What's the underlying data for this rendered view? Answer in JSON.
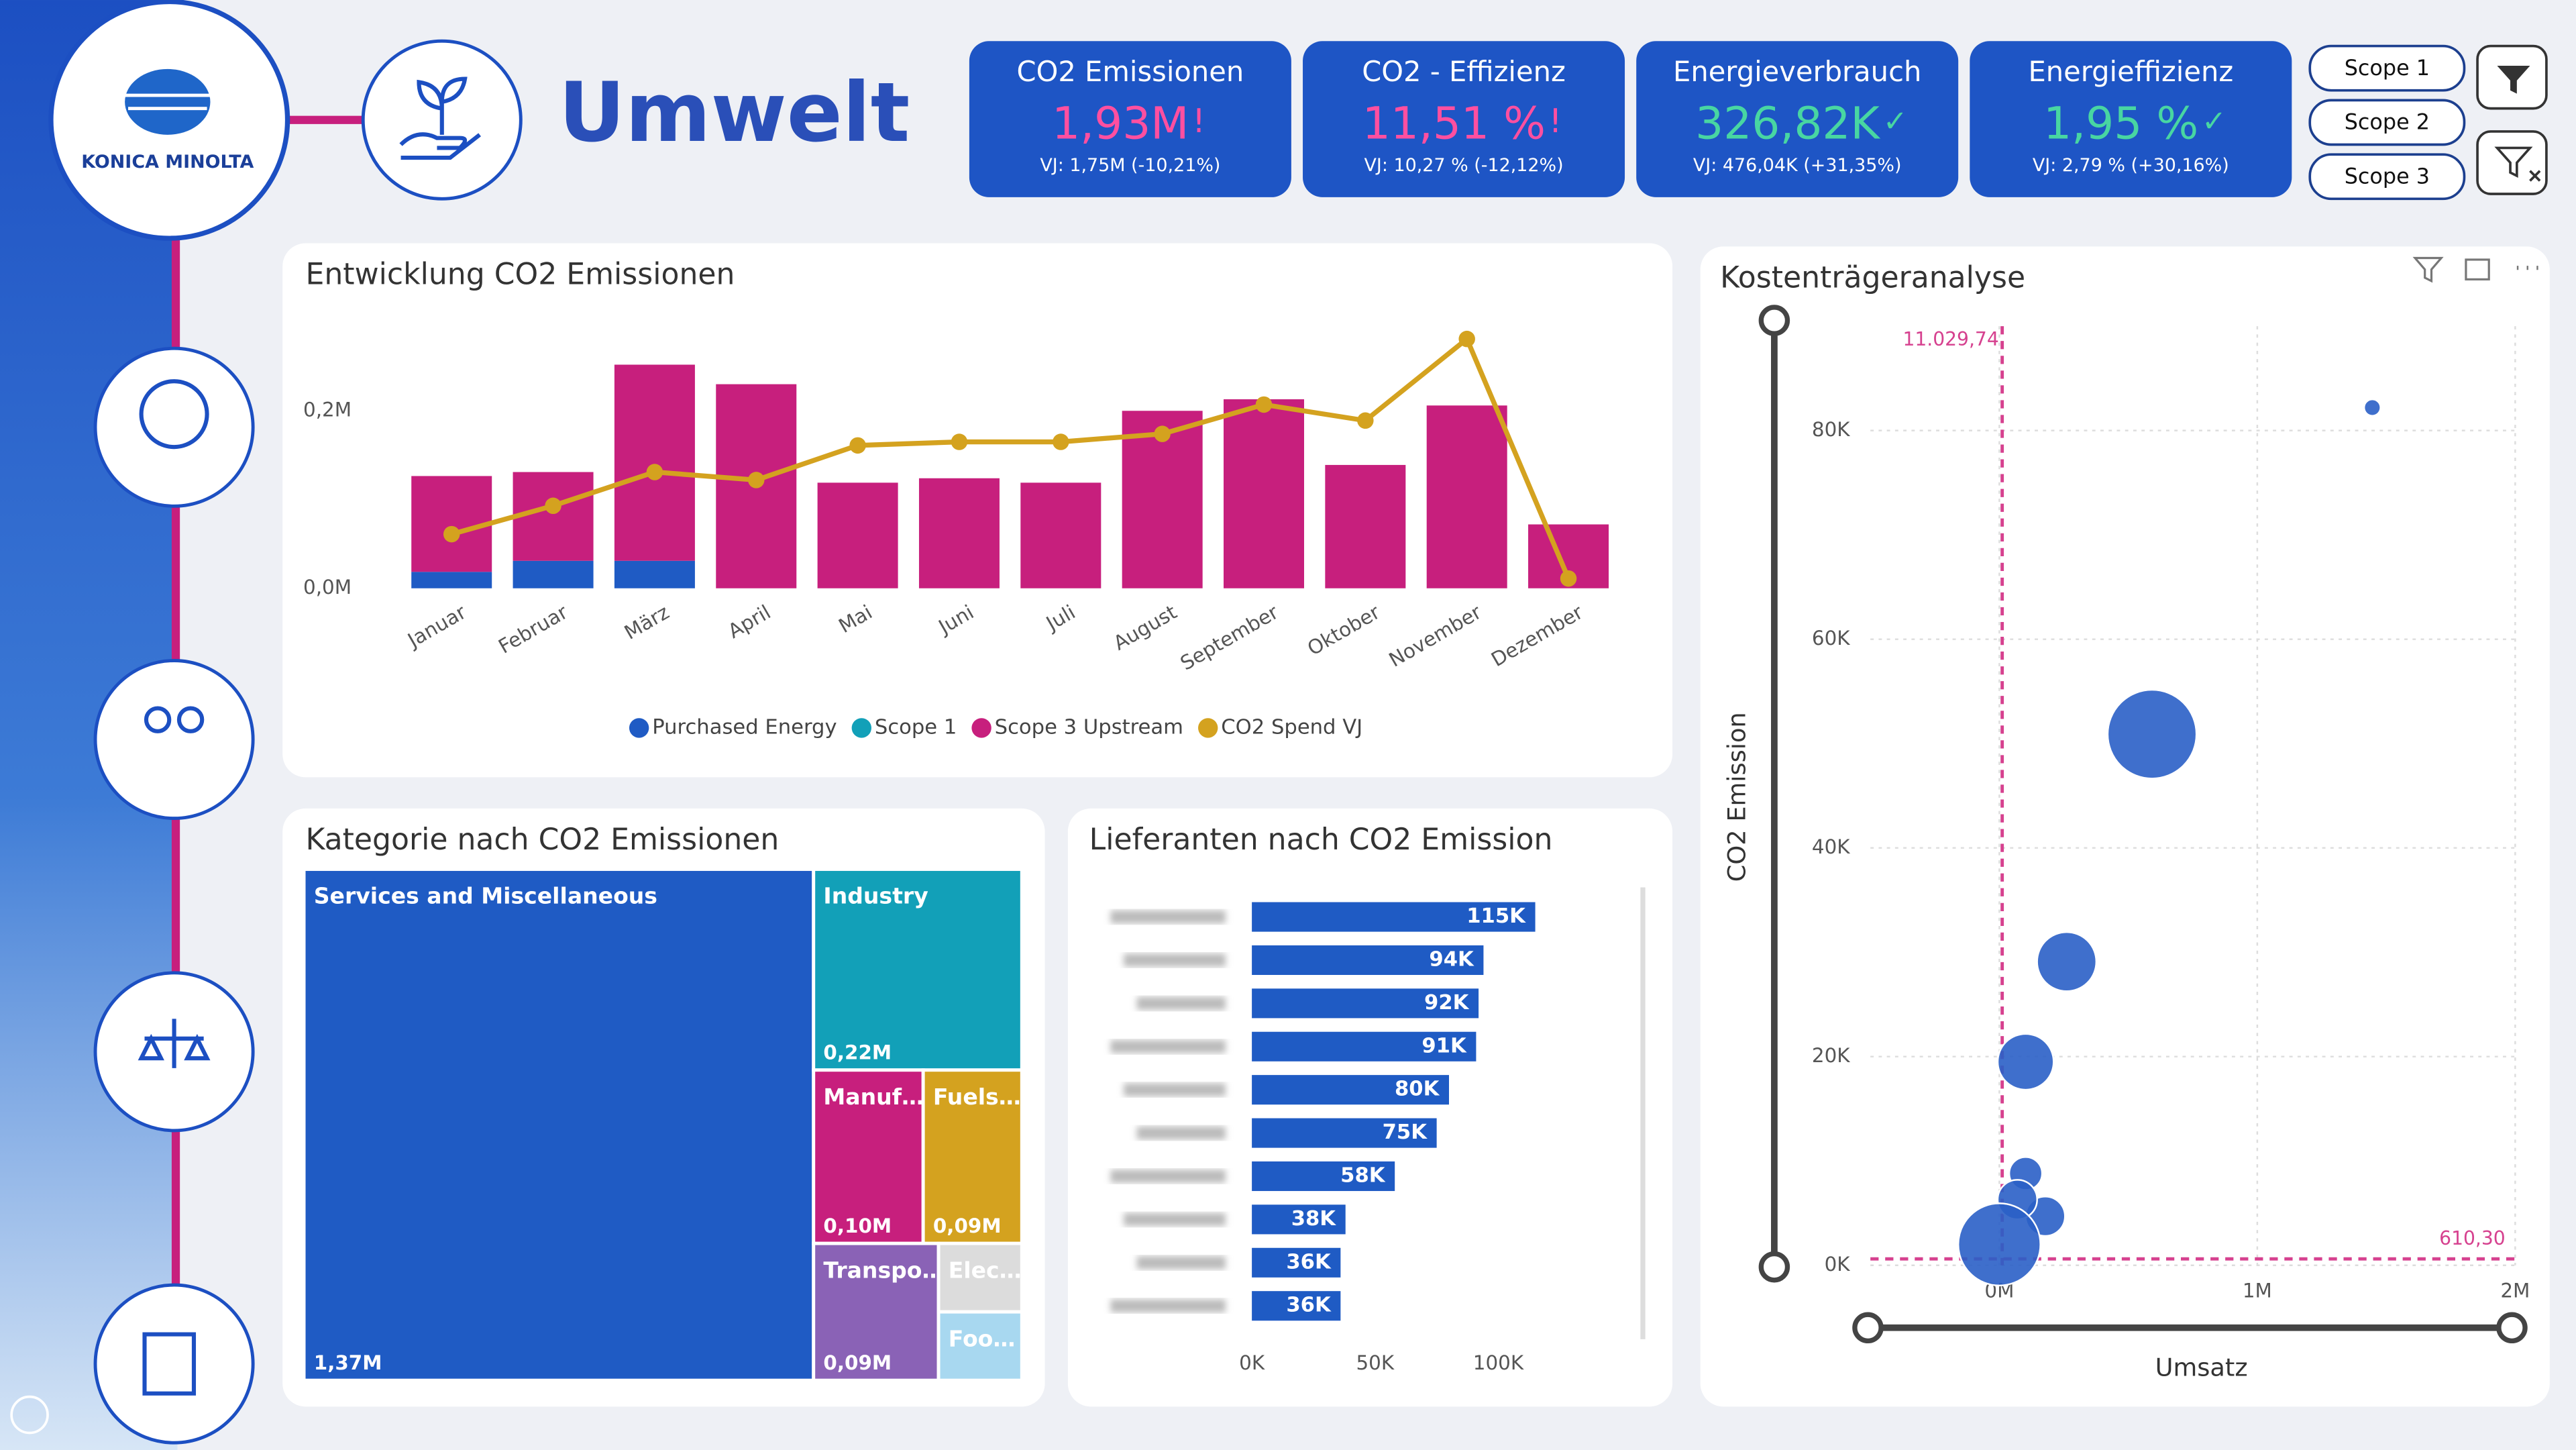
{
  "header": {
    "logo": "KONICA MINOLTA",
    "title": "Umwelt"
  },
  "kpis": [
    {
      "title": "CO2 Emissionen",
      "value": "1,93M",
      "flag": "!",
      "previous": "VJ: 1,75M (-10,21%)"
    },
    {
      "title": "CO2 - Effizienz",
      "value": "11,51 %",
      "flag": "!",
      "previous": "VJ: 10,27 % (-12,12%)"
    },
    {
      "title": "Energieverbrauch",
      "value": "326,82K",
      "flag": "✓",
      "previous": "VJ: 476,04K (+31,35%)"
    },
    {
      "title": "Energieffizienz",
      "value": "1,95 %",
      "flag": "✓",
      "previous": "VJ: 2,79 % (+30,16%)"
    }
  ],
  "filters": [
    "Scope 1",
    "Scope 2",
    "Scope 3"
  ],
  "chart_data": [
    {
      "type": "bar",
      "title": "Entwicklung CO2 Emissionen",
      "categories": [
        "Januar",
        "Februar",
        "März",
        "April",
        "Mai",
        "Juni",
        "Juli",
        "August",
        "September",
        "Oktober",
        "November",
        "Dezember"
      ],
      "series": [
        {
          "name": "Purchased Energy",
          "color": "#1f5bc4",
          "values": [
            0.0185,
            0.031,
            0.031,
            0,
            0,
            0,
            0,
            0,
            0,
            0,
            0,
            0
          ]
        },
        {
          "name": "Scope 1",
          "color": "#12a0b8",
          "values": [
            0,
            0,
            0,
            0,
            0,
            0,
            0,
            0,
            0,
            0,
            0,
            0
          ]
        },
        {
          "name": "Scope 3 Upstream",
          "color": "#c71f7d",
          "values": [
            0.108,
            0.1,
            0.221,
            0.23,
            0.119,
            0.124,
            0.119,
            0.2,
            0.213,
            0.139,
            0.206,
            0.072
          ]
        },
        {
          "name": "CO2 Spend VJ",
          "color": "#d4a21f",
          "type": "line",
          "values": [
            0.061,
            0.093,
            0.131,
            0.122,
            0.161,
            0.165,
            0.165,
            0.174,
            0.207,
            0.189,
            0.281,
            0.011
          ]
        }
      ],
      "stacked": true,
      "ylim": [
        0,
        0.3
      ],
      "yticks": [
        {
          "value": 0,
          "label": "0,0M"
        },
        {
          "value": 0.2,
          "label": "0,2M"
        }
      ],
      "legend": "bottom"
    },
    {
      "type": "treemap",
      "title": "Kategorie nach CO2 Emissionen",
      "categories": [
        "Services and Miscellaneous",
        "Industry",
        "Manuf…",
        "Fuels…",
        "Transpo…",
        "Elec…",
        "Foo…"
      ],
      "values": [
        1.37,
        0.22,
        0.1,
        0.09,
        0.09,
        0.03,
        0.03
      ],
      "value_labels": [
        "1,37M",
        "0,22M",
        "0,10M",
        "0,09M",
        "0,09M",
        null,
        null
      ],
      "colors": [
        "#1f5bc4",
        "#12a0b8",
        "#c71f7d",
        "#d4a21f",
        "#8a62b6",
        "#dcdcdc",
        "#a8d8f0"
      ]
    },
    {
      "type": "barh",
      "title": "Lieferanten nach CO2 Emission",
      "categories": [
        null,
        null,
        null,
        null,
        null,
        null,
        null,
        null,
        null,
        null
      ],
      "values": [
        115,
        94,
        92,
        91,
        80,
        75,
        58,
        38,
        36,
        36
      ],
      "value_labels": [
        "115K",
        "94K",
        "92K",
        "91K",
        "80K",
        "75K",
        "58K",
        "38K",
        "36K",
        "36K"
      ],
      "color": "#1f5bc4",
      "xlim": [
        0,
        150
      ],
      "xticks": [
        {
          "value": 0,
          "label": "0K"
        },
        {
          "value": 50,
          "label": "50K"
        },
        {
          "value": 100,
          "label": "100K"
        }
      ]
    },
    {
      "type": "scatter",
      "title": "Kostenträgeranalyse",
      "x_label": "Umsatz",
      "y_label": "CO2 Emission",
      "x": [
        1.446,
        0.592,
        0.261,
        0.102,
        0.102,
        0.178,
        0.07,
        0.0
      ],
      "values": [
        82.2,
        50.9,
        29.1,
        19.5,
        8.8,
        4.7,
        6.3,
        2.0
      ],
      "sizes": [
        5,
        27,
        18,
        17,
        10,
        12,
        12,
        25
      ],
      "color": "#2a5fc6",
      "xlim": [
        -0.5,
        2
      ],
      "ylim": [
        0,
        90
      ],
      "xticks": [
        {
          "value": 0,
          "label": "0M"
        },
        {
          "value": 1,
          "label": "1M"
        },
        {
          "value": 2,
          "label": "2M"
        }
      ],
      "yticks": [
        {
          "value": 0,
          "label": "0K"
        },
        {
          "value": 20,
          "label": "20K"
        },
        {
          "value": 40,
          "label": "40K"
        },
        {
          "value": 60,
          "label": "60K"
        },
        {
          "value": 80,
          "label": "80K"
        }
      ],
      "grid": true,
      "reference_lines": [
        {
          "axis": "x",
          "value": 0.01102974,
          "label": "11.029,74",
          "color": "#d6418f"
        },
        {
          "axis": "y",
          "value": 0.6103,
          "label": "610,30",
          "color": "#d6418f"
        }
      ]
    }
  ]
}
